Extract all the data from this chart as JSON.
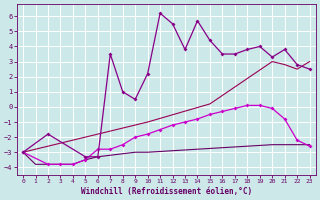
{
  "xlabel": "Windchill (Refroidissement éolien,°C)",
  "bg_color": "#cde8e8",
  "grid_color": "#b8d8d8",
  "xlim": [
    -0.5,
    23.5
  ],
  "ylim": [
    -4.5,
    6.8
  ],
  "xticks": [
    0,
    1,
    2,
    3,
    4,
    5,
    6,
    7,
    8,
    9,
    10,
    11,
    12,
    13,
    14,
    15,
    16,
    17,
    18,
    19,
    20,
    21,
    22,
    23
  ],
  "yticks": [
    -4,
    -3,
    -2,
    -1,
    0,
    1,
    2,
    3,
    4,
    5,
    6
  ],
  "line1_color": "#880088",
  "line2_color": "#cc00cc",
  "line3_color": "#990055",
  "line4_color": "#660066",
  "line1_x": [
    0,
    2,
    5,
    6,
    7,
    8,
    9,
    10,
    11,
    12,
    13,
    14,
    15,
    16,
    17,
    18,
    19,
    20,
    21,
    22,
    23
  ],
  "line1_y": [
    -3.0,
    -1.8,
    -3.3,
    -3.3,
    3.5,
    1.0,
    0.5,
    2.2,
    6.2,
    5.5,
    3.8,
    5.7,
    4.4,
    3.5,
    3.5,
    3.8,
    4.0,
    3.3,
    3.8,
    2.8,
    2.5
  ],
  "line2_x": [
    0,
    2,
    3,
    4,
    5,
    6,
    7,
    8,
    9,
    10,
    11,
    12,
    13,
    14,
    15,
    16,
    17,
    18,
    19,
    20,
    21,
    22,
    23
  ],
  "line2_y": [
    -3.0,
    -3.8,
    -3.8,
    -3.8,
    -3.5,
    -2.8,
    -2.8,
    -2.5,
    -2.0,
    -1.8,
    -1.5,
    -1.2,
    -1.0,
    -0.8,
    -0.5,
    -0.3,
    -0.1,
    0.1,
    0.1,
    -0.1,
    -0.8,
    -2.2,
    -2.6
  ],
  "line3_x": [
    0,
    1,
    2,
    3,
    4,
    5,
    6,
    7,
    8,
    9,
    10,
    11,
    12,
    13,
    14,
    15,
    16,
    17,
    18,
    19,
    20,
    21,
    22,
    23
  ],
  "line3_y": [
    -3.0,
    -3.8,
    -3.8,
    -3.8,
    -3.8,
    -3.5,
    -3.3,
    -3.2,
    -3.1,
    -3.0,
    -3.0,
    -2.95,
    -2.9,
    -2.85,
    -2.8,
    -2.75,
    -2.7,
    -2.65,
    -2.6,
    -2.55,
    -2.5,
    -2.5,
    -2.5,
    -2.5
  ],
  "line4_x": [
    0,
    5,
    10,
    15,
    20,
    21,
    22,
    23
  ],
  "line4_y": [
    -3.0,
    -2.0,
    -1.0,
    0.2,
    3.0,
    2.8,
    2.5,
    3.0
  ]
}
